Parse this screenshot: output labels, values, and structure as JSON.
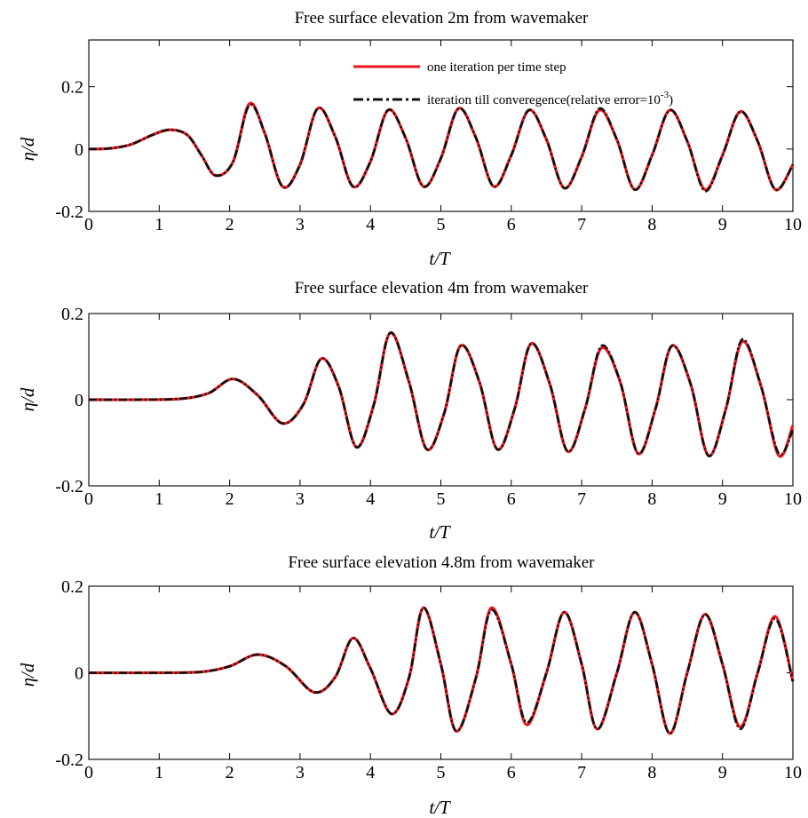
{
  "chart_data": [
    {
      "type": "line",
      "title": "Free surface elevation 2m from wavemaker",
      "xlabel": "t/T",
      "ylabel": "η/d",
      "xlim": [
        0,
        10
      ],
      "ylim": [
        -0.2,
        0.35
      ],
      "xticks": [
        "0",
        "1",
        "2",
        "3",
        "4",
        "5",
        "6",
        "7",
        "8",
        "9",
        "10"
      ],
      "yticks": [
        {
          "v": 0.2,
          "label": "0.2"
        },
        {
          "v": 0,
          "label": "0"
        },
        {
          "v": -0.2,
          "label": "-0.2"
        }
      ],
      "grid": false,
      "legend_placement": "top-right",
      "legend": [
        {
          "label": "one iteration per time step",
          "color": "#e8161c",
          "style": "solid"
        },
        {
          "label": "iteration till converegence(relative error=10",
          "sup": "-3",
          "suffix": ")",
          "color": "#111111",
          "style": "dash-dot"
        }
      ],
      "x": [
        0,
        0.3,
        0.6,
        0.9,
        1.15,
        1.4,
        1.6,
        1.8,
        2.05,
        2.28,
        2.5,
        2.75,
        3.0,
        3.25,
        3.5,
        3.75,
        4.0,
        4.25,
        4.5,
        4.75,
        5.0,
        5.25,
        5.5,
        5.75,
        6.0,
        6.25,
        6.5,
        6.75,
        7.0,
        7.25,
        7.5,
        7.75,
        8.0,
        8.25,
        8.5,
        8.75,
        9.0,
        9.25,
        9.5,
        9.75,
        10.0
      ],
      "series": [
        {
          "values": [
            0,
            0.002,
            0.015,
            0.045,
            0.062,
            0.045,
            -0.02,
            -0.085,
            -0.04,
            0.145,
            0.05,
            -0.12,
            -0.05,
            0.13,
            0.04,
            -0.12,
            -0.04,
            0.125,
            0.035,
            -0.12,
            -0.03,
            0.13,
            0.035,
            -0.12,
            -0.02,
            0.125,
            0.03,
            -0.125,
            -0.025,
            0.125,
            0.03,
            -0.13,
            -0.02,
            0.125,
            0.025,
            -0.13,
            -0.02,
            0.12,
            0.025,
            -0.13,
            -0.05
          ],
          "color": "#e8161c",
          "style": "solid"
        },
        {
          "values": [
            0,
            0.002,
            0.015,
            0.045,
            0.062,
            0.045,
            -0.02,
            -0.085,
            -0.04,
            0.14,
            0.05,
            -0.12,
            -0.05,
            0.13,
            0.04,
            -0.12,
            -0.04,
            0.125,
            0.035,
            -0.12,
            -0.03,
            0.13,
            0.035,
            -0.12,
            -0.02,
            0.125,
            0.03,
            -0.125,
            -0.025,
            0.13,
            0.03,
            -0.13,
            -0.02,
            0.125,
            0.025,
            -0.135,
            -0.02,
            0.12,
            0.025,
            -0.13,
            -0.05
          ],
          "color": "#111111",
          "style": "dash-dot"
        }
      ]
    },
    {
      "type": "line",
      "title": "Free surface elevation 4m from wavemaker",
      "xlabel": "t/T",
      "ylabel": "η/d",
      "xlim": [
        0,
        10
      ],
      "ylim": [
        -0.2,
        0.2
      ],
      "xticks": [
        "0",
        "1",
        "2",
        "3",
        "4",
        "5",
        "6",
        "7",
        "8",
        "9",
        "10"
      ],
      "yticks": [
        {
          "v": 0.2,
          "label": "0.2"
        },
        {
          "v": 0,
          "label": "0"
        },
        {
          "v": -0.2,
          "label": "-0.2"
        }
      ],
      "grid": false,
      "x": [
        0,
        0.7,
        1.3,
        1.7,
        2.05,
        2.4,
        2.75,
        3.05,
        3.3,
        3.55,
        3.8,
        4.05,
        4.28,
        4.55,
        4.8,
        5.05,
        5.28,
        5.55,
        5.8,
        6.05,
        6.28,
        6.55,
        6.8,
        7.05,
        7.28,
        7.55,
        7.8,
        8.05,
        8.28,
        8.55,
        8.8,
        9.05,
        9.28,
        9.55,
        9.8,
        10.0
      ],
      "series": [
        {
          "values": [
            0,
            0,
            0.002,
            0.015,
            0.048,
            0.01,
            -0.055,
            -0.01,
            0.095,
            0.03,
            -0.11,
            -0.01,
            0.155,
            0.04,
            -0.115,
            -0.03,
            0.125,
            0.04,
            -0.115,
            -0.02,
            0.13,
            0.035,
            -0.12,
            -0.02,
            0.12,
            0.04,
            -0.125,
            -0.02,
            0.125,
            0.035,
            -0.13,
            -0.02,
            0.135,
            0.03,
            -0.13,
            -0.06
          ],
          "color": "#e8161c",
          "style": "solid"
        },
        {
          "values": [
            0,
            0,
            0.002,
            0.015,
            0.048,
            0.01,
            -0.055,
            -0.01,
            0.095,
            0.03,
            -0.11,
            -0.01,
            0.155,
            0.04,
            -0.115,
            -0.03,
            0.125,
            0.04,
            -0.115,
            -0.02,
            0.13,
            0.035,
            -0.12,
            -0.02,
            0.125,
            0.04,
            -0.125,
            -0.02,
            0.125,
            0.035,
            -0.13,
            -0.02,
            0.14,
            0.03,
            -0.125,
            -0.07
          ],
          "color": "#111111",
          "style": "dash-dot"
        }
      ]
    },
    {
      "type": "line",
      "title": "Free surface elevation 4.8m from wavemaker",
      "xlabel": "t/T",
      "ylabel": "η/d",
      "xlim": [
        0,
        10
      ],
      "ylim": [
        -0.2,
        0.2
      ],
      "xticks": [
        "0",
        "1",
        "2",
        "3",
        "4",
        "5",
        "6",
        "7",
        "8",
        "9",
        "10"
      ],
      "yticks": [
        {
          "v": 0.2,
          "label": "0.2"
        },
        {
          "v": 0,
          "label": "0"
        },
        {
          "v": -0.2,
          "label": "-0.2"
        }
      ],
      "grid": false,
      "x": [
        0,
        1.0,
        1.6,
        2.0,
        2.4,
        2.8,
        3.2,
        3.5,
        3.75,
        4.0,
        4.3,
        4.55,
        4.75,
        5.0,
        5.22,
        5.5,
        5.72,
        6.0,
        6.22,
        6.5,
        6.75,
        7.0,
        7.22,
        7.5,
        7.75,
        8.0,
        8.25,
        8.5,
        8.75,
        9.0,
        9.25,
        9.5,
        9.75,
        10.0
      ],
      "series": [
        {
          "values": [
            0,
            0,
            0.002,
            0.015,
            0.042,
            0.015,
            -0.045,
            -0.01,
            0.08,
            0.01,
            -0.095,
            -0.01,
            0.15,
            0.02,
            -0.135,
            -0.01,
            0.15,
            0.02,
            -0.12,
            0,
            0.14,
            0.02,
            -0.13,
            0,
            0.14,
            0.02,
            -0.14,
            0,
            0.135,
            0.02,
            -0.125,
            0,
            0.13,
            -0.02
          ],
          "color": "#e8161c",
          "style": "solid"
        },
        {
          "values": [
            0,
            0,
            0.002,
            0.015,
            0.042,
            0.015,
            -0.045,
            -0.01,
            0.08,
            0.01,
            -0.095,
            -0.01,
            0.15,
            0.02,
            -0.135,
            -0.01,
            0.145,
            0.02,
            -0.115,
            0,
            0.14,
            0.02,
            -0.13,
            0,
            0.14,
            0.02,
            -0.14,
            0,
            0.135,
            0.02,
            -0.13,
            0,
            0.125,
            -0.02
          ],
          "color": "#111111",
          "style": "dash-dot"
        }
      ]
    }
  ]
}
